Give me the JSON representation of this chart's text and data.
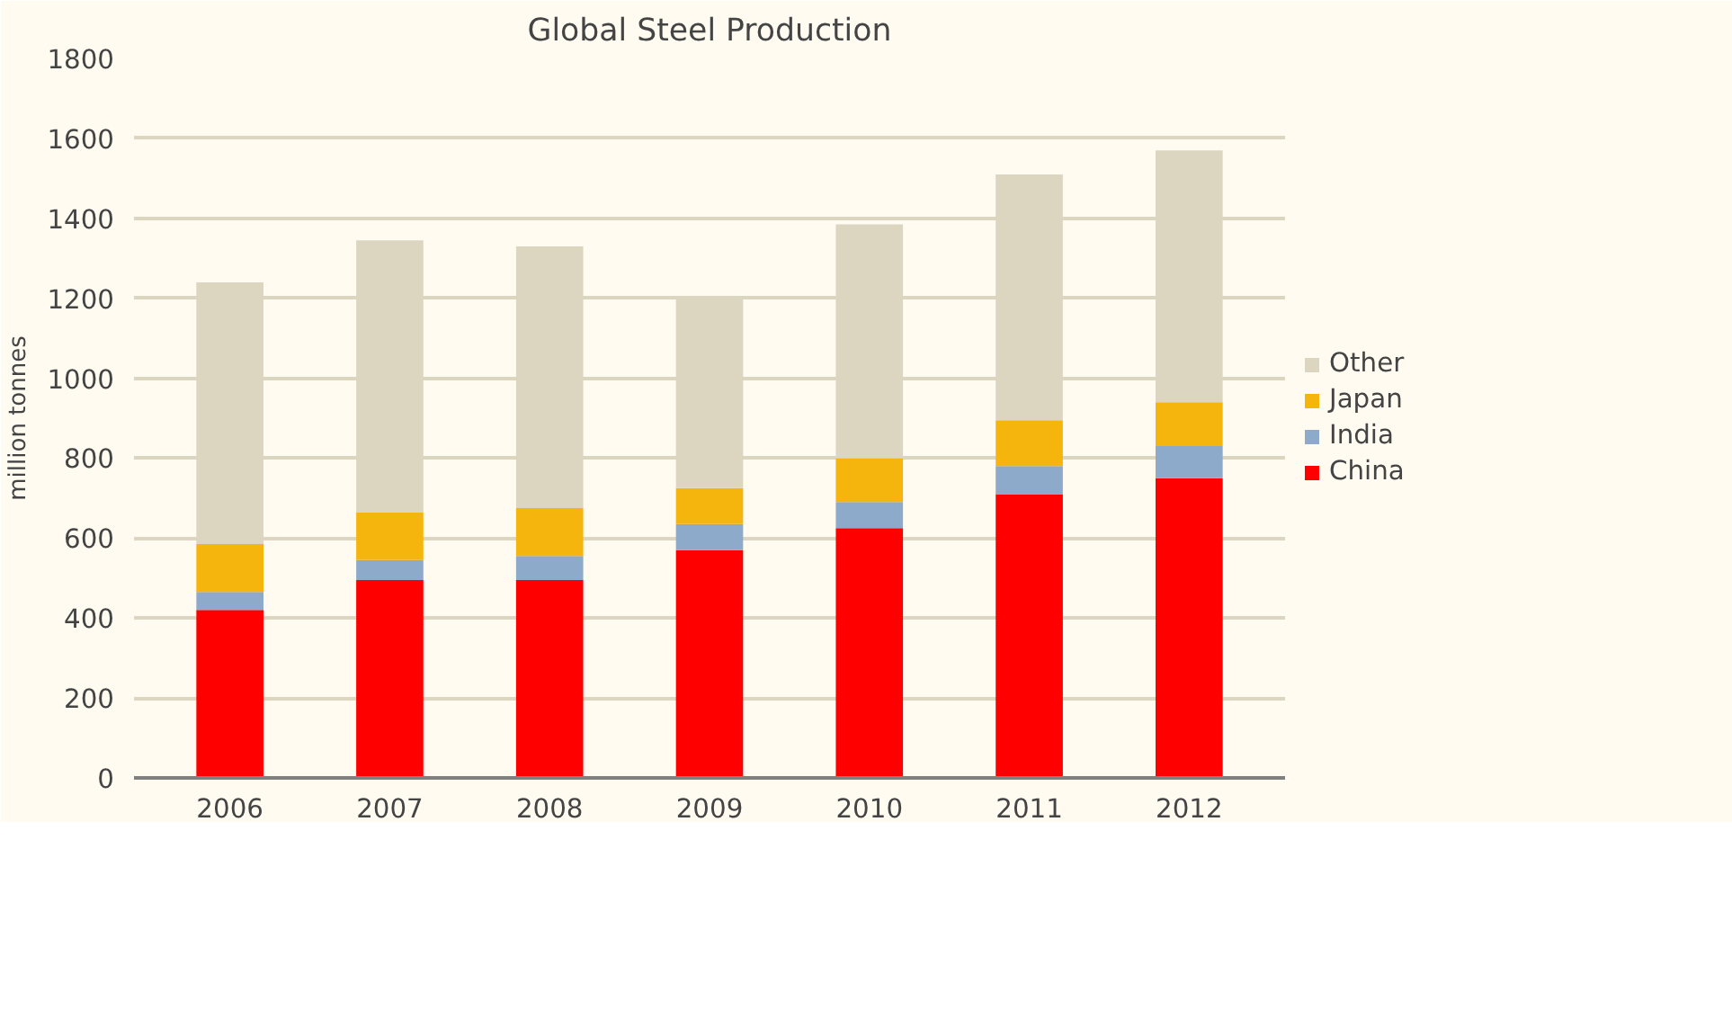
{
  "chart_data": {
    "type": "bar",
    "stacked": true,
    "title": "Global Steel Production",
    "ylabel": "million tonnes",
    "categories": [
      "2006",
      "2007",
      "2008",
      "2009",
      "2010",
      "2011",
      "2012"
    ],
    "series": [
      {
        "name": "China",
        "color": "#ff0000",
        "values": [
          420,
          495,
          495,
          570,
          625,
          710,
          750
        ]
      },
      {
        "name": "India",
        "color": "#8eaacb",
        "values": [
          45,
          50,
          60,
          65,
          65,
          70,
          80
        ]
      },
      {
        "name": "Japan",
        "color": "#f5b50c",
        "values": [
          120,
          120,
          120,
          90,
          110,
          115,
          110
        ]
      },
      {
        "name": "Other",
        "color": "#dcd6c0",
        "values": [
          655,
          680,
          655,
          480,
          585,
          615,
          630
        ]
      }
    ],
    "ylim": [
      0,
      1800
    ],
    "yticks": [
      0,
      200,
      400,
      600,
      800,
      1000,
      1200,
      1400,
      1600,
      1800
    ],
    "grid": "y",
    "legend": "right"
  }
}
